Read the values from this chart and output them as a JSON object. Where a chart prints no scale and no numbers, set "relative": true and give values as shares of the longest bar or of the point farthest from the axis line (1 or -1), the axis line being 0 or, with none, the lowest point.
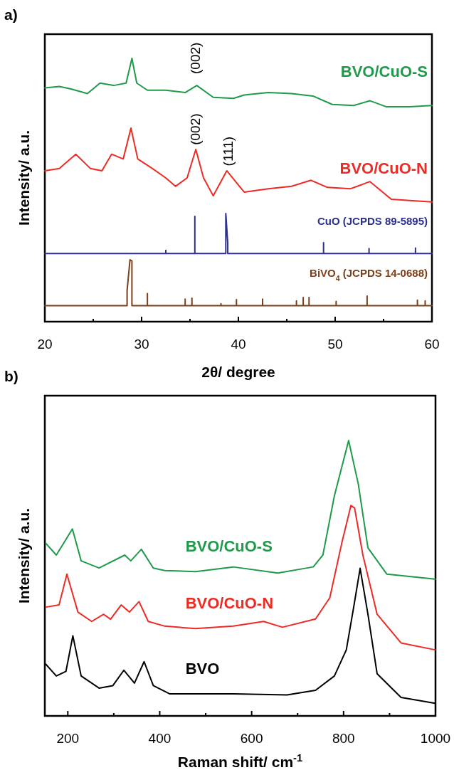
{
  "chart_data": [
    {
      "type": "line",
      "title": "a)",
      "xlabel": "2θ/ degree",
      "ylabel": "Intensity/ a.u.",
      "relative": true,
      "tick_labels": "x",
      "xlim": [
        20,
        60
      ],
      "xticks": [
        20,
        {
          "value": 25,
          "label": null
        },
        30,
        {
          "value": 35,
          "label": null
        },
        40,
        {
          "value": 45,
          "label": null
        },
        50,
        {
          "value": 55,
          "label": null
        },
        60
      ],
      "annotations": [
        "(002)",
        {
          "text": "(002)",
          "x": 35.6,
          "y": 0.66
        },
        {
          "text": "(111)",
          "x": 39.0,
          "y": 0.58
        }
      ],
      "series": [
        {
          "name": "BVO/CuO-S",
          "color": "#1f9a4a",
          "x": [
            20.0,
            21.5,
            22.7,
            24.4,
            25.7,
            27.1,
            28.4,
            29.0,
            29.5,
            30.6,
            32.5,
            34.5,
            35.7,
            37.4,
            39.5,
            40.6,
            43.1,
            45.5,
            47.7,
            49.7,
            51.9,
            53.6,
            55.3,
            57.7,
            60.0
          ],
          "values": [
            0.888,
            0.893,
            0.884,
            0.866,
            0.906,
            0.897,
            0.906,
            1.0,
            0.906,
            0.879,
            0.879,
            0.87,
            0.897,
            0.852,
            0.848,
            0.861,
            0.87,
            0.866,
            0.857,
            0.825,
            0.821,
            0.839,
            0.816,
            0.816,
            0.821
          ]
        },
        {
          "name": "BVO/CuO-N",
          "color": "#ee2a24",
          "x": [
            20.0,
            21.5,
            23.2,
            24.7,
            25.9,
            26.9,
            28.1,
            28.9,
            29.6,
            31.1,
            32.5,
            33.5,
            34.7,
            35.6,
            36.4,
            37.4,
            38.8,
            40.6,
            43.1,
            45.5,
            47.5,
            49.2,
            51.6,
            53.6,
            55.8,
            57.7,
            60.0
          ],
          "values": [
            0.573,
            0.582,
            0.636,
            0.582,
            0.573,
            0.636,
            0.618,
            0.735,
            0.618,
            0.582,
            0.546,
            0.514,
            0.546,
            0.654,
            0.546,
            0.478,
            0.573,
            0.492,
            0.505,
            0.514,
            0.537,
            0.51,
            0.505,
            0.532,
            0.465,
            0.46,
            0.455
          ]
        },
        {
          "name": "CuO (JCPDS 89-5895)",
          "color": "#2b2f8f",
          "x": [
            20,
            32.5,
            32.5,
            32.5,
            35.5,
            35.5,
            35.5,
            38.7,
            38.7,
            38.9,
            38.9,
            38.9,
            48.8,
            48.8,
            48.8,
            53.5,
            53.5,
            53.5,
            58.3,
            58.3,
            58.3,
            60
          ],
          "values": [
            0.259,
            0.259,
            0.271,
            0.259,
            0.259,
            0.4,
            0.259,
            0.259,
            0.411,
            0.298,
            0.259,
            0.259,
            0.259,
            0.3,
            0.259,
            0.259,
            0.278,
            0.259,
            0.259,
            0.28,
            0.259,
            0.259
          ]
        },
        {
          "name": "BiVO$_{4}$ (JCPDS 14-0688)",
          "color": "#7b3f1a",
          "x": [
            20,
            28.5,
            28.5,
            28.8,
            29.0,
            29.0,
            30.6,
            30.6,
            30.6,
            34.5,
            34.5,
            34.5,
            35.2,
            35.2,
            35.2,
            38.2,
            38.2,
            38.2,
            39.8,
            39.8,
            39.8,
            42.5,
            42.5,
            42.5,
            46.0,
            46.0,
            46.0,
            46.7,
            46.7,
            46.7,
            47.3,
            47.3,
            47.3,
            50.1,
            50.1,
            50.1,
            53.3,
            53.3,
            53.3,
            58.5,
            58.5,
            58.5,
            59.3,
            59.3,
            59.3,
            60
          ],
          "values": [
            0.061,
            0.061,
            0.118,
            0.235,
            0.231,
            0.061,
            0.061,
            0.107,
            0.061,
            0.061,
            0.086,
            0.061,
            0.061,
            0.089,
            0.061,
            0.061,
            0.068,
            0.061,
            0.061,
            0.084,
            0.061,
            0.061,
            0.086,
            0.061,
            0.061,
            0.079,
            0.061,
            0.061,
            0.092,
            0.061,
            0.061,
            0.092,
            0.061,
            0.061,
            0.077,
            0.061,
            0.061,
            0.097,
            0.061,
            0.061,
            0.082,
            0.061,
            0.061,
            0.079,
            0.061,
            0.061
          ]
        }
      ]
    },
    {
      "type": "line",
      "title": "b)",
      "xlabel": "Raman shift/ cm$^{-1}$",
      "ylabel": "Intensity/ a.u.",
      "relative": true,
      "tick_labels": "x",
      "xlim": [
        150,
        1000
      ],
      "xticks": [
        200,
        {
          "value": 300,
          "label": null
        },
        400,
        {
          "value": 500,
          "label": null
        },
        600,
        {
          "value": 700,
          "label": null
        },
        800,
        {
          "value": 900,
          "label": null
        },
        1000
      ],
      "series": [
        {
          "name": "BVO/CuO-S",
          "color": "#1f9a4a",
          "x": [
            152,
            175,
            210,
            229,
            268,
            324,
            337,
            360,
            386,
            411,
            478,
            560,
            657,
            734,
            755,
            780,
            811,
            832,
            853,
            894,
            999
          ],
          "values": [
            0.627,
            0.584,
            0.679,
            0.563,
            0.537,
            0.584,
            0.563,
            0.605,
            0.537,
            0.528,
            0.524,
            0.541,
            0.519,
            0.541,
            0.584,
            0.799,
            1.0,
            0.842,
            0.61,
            0.515,
            0.497
          ]
        },
        {
          "name": "BVO/CuO-N",
          "color": "#ee2a24",
          "x": [
            152,
            181,
            198,
            222,
            252,
            278,
            293,
            316,
            334,
            355,
            375,
            411,
            478,
            560,
            626,
            667,
            739,
            770,
            796,
            816,
            824,
            842,
            873,
            925,
            999
          ],
          "values": [
            0.395,
            0.403,
            0.515,
            0.377,
            0.343,
            0.369,
            0.351,
            0.403,
            0.377,
            0.415,
            0.343,
            0.326,
            0.317,
            0.326,
            0.343,
            0.322,
            0.352,
            0.429,
            0.627,
            0.764,
            0.755,
            0.584,
            0.369,
            0.265,
            0.24
          ]
        },
        {
          "name": "BVO",
          "color": "#000000",
          "x": [
            152,
            175,
            196,
            211,
            229,
            268,
            298,
            322,
            345,
            366,
            386,
            422,
            560,
            677,
            739,
            780,
            806,
            822,
            836,
            853,
            873,
            925,
            999
          ],
          "values": [
            0.188,
            0.145,
            0.162,
            0.291,
            0.145,
            0.101,
            0.11,
            0.166,
            0.119,
            0.197,
            0.11,
            0.08,
            0.08,
            0.076,
            0.093,
            0.145,
            0.24,
            0.395,
            0.536,
            0.369,
            0.153,
            0.067,
            0.046
          ]
        }
      ]
    }
  ]
}
